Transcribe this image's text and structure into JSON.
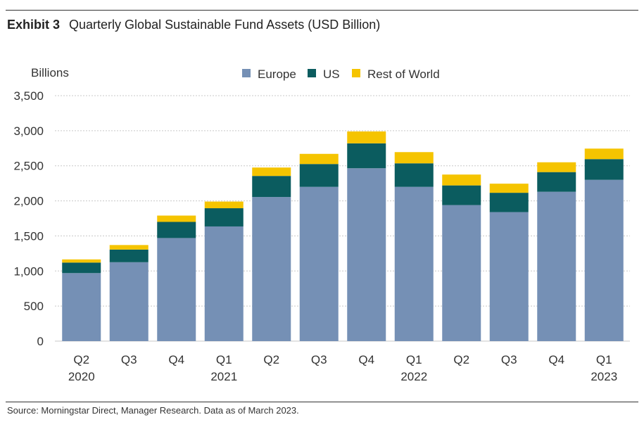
{
  "header": {
    "exhibit_label": "Exhibit 3",
    "title": "Quarterly Global Sustainable Fund Assets (USD Billion)"
  },
  "footer": {
    "source": "Source: Morningstar Direct, Manager Research. Data as of March 2023."
  },
  "colors": {
    "europe": "#7590b5",
    "us": "#0b5c5f",
    "rest_of_world": "#f5c400",
    "grid": "#c8c8c8",
    "axis_text": "#333333"
  },
  "chart_data": {
    "type": "bar",
    "stacked": true,
    "title": "Quarterly Global Sustainable Fund Assets (USD Billion)",
    "ylabel": "Billions",
    "xlabel": "",
    "ylim": [
      0,
      3500
    ],
    "yticks": [
      0,
      500,
      1000,
      1500,
      2000,
      2500,
      3000,
      3500
    ],
    "ytick_labels": [
      "0",
      "500",
      "1,000",
      "1,500",
      "2,000",
      "2,500",
      "3,000",
      "3,500"
    ],
    "grid": true,
    "legend_position": "top-center",
    "categories": [
      {
        "quarter": "Q2",
        "year": "2020"
      },
      {
        "quarter": "Q3",
        "year": ""
      },
      {
        "quarter": "Q4",
        "year": ""
      },
      {
        "quarter": "Q1",
        "year": "2021"
      },
      {
        "quarter": "Q2",
        "year": ""
      },
      {
        "quarter": "Q3",
        "year": ""
      },
      {
        "quarter": "Q4",
        "year": ""
      },
      {
        "quarter": "Q1",
        "year": "2022"
      },
      {
        "quarter": "Q2",
        "year": ""
      },
      {
        "quarter": "Q3",
        "year": ""
      },
      {
        "quarter": "Q4",
        "year": ""
      },
      {
        "quarter": "Q1",
        "year": "2023"
      }
    ],
    "series": [
      {
        "name": "Europe",
        "color_key": "europe",
        "values": [
          970,
          1125,
          1470,
          1635,
          2055,
          2200,
          2465,
          2200,
          1940,
          1840,
          2130,
          2300
        ]
      },
      {
        "name": "US",
        "color_key": "us",
        "values": [
          150,
          180,
          230,
          260,
          300,
          325,
          355,
          335,
          280,
          275,
          280,
          295
        ]
      },
      {
        "name": "Rest of World",
        "color_key": "rest_of_world",
        "values": [
          45,
          65,
          90,
          95,
          120,
          145,
          170,
          160,
          155,
          130,
          140,
          150
        ]
      }
    ]
  }
}
